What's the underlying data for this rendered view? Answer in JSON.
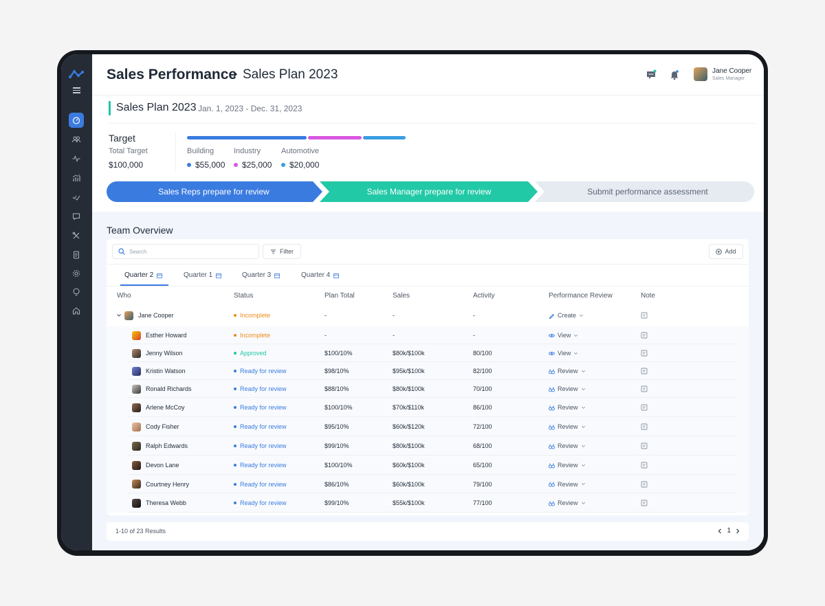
{
  "breadcrumb": {
    "section": "Sales Performance",
    "page": "Sales Plan 2023"
  },
  "user": {
    "name": "Jane Cooper",
    "role": "Sales Manager"
  },
  "plan": {
    "title": "Sales Plan 2023",
    "dates": "Jan. 1, 2023 - Dec. 31, 2023"
  },
  "target": {
    "heading": "Target",
    "total_label": "Total Target",
    "total_value": "$100,000",
    "categories": [
      {
        "label": "Building",
        "value": "$55,000",
        "color": "#3a7be0"
      },
      {
        "label": "Industry",
        "value": "$25,000",
        "color": "#d957df"
      },
      {
        "label": "Automotive",
        "value": "$20,000",
        "color": "#3a9de0"
      }
    ]
  },
  "steps": [
    {
      "label": "Sales Reps prepare for review",
      "state": "done",
      "color": "#3a7be0"
    },
    {
      "label": "Sales Manager prepare for review",
      "state": "current",
      "color": "#22c9a6"
    },
    {
      "label": "Submit performance assessment",
      "state": "pending",
      "color": "#e6ebf2"
    }
  ],
  "overview": {
    "title": "Team Overview",
    "search_placeholder": "Search",
    "filter_label": "Filter",
    "add_label": "Add",
    "tabs": [
      "Quarter 2",
      "Quarter 1",
      "Quarter 3",
      "Quarter 4"
    ],
    "active_tab": "Quarter 2",
    "columns": [
      "Who",
      "Status",
      "Plan Total",
      "Sales",
      "Activity",
      "Performance Review",
      "Note"
    ],
    "rows": [
      {
        "who": "Jane Cooper",
        "status": "Incomplete",
        "status_color": "#f08a1c",
        "plan_total": "-",
        "sales": "-",
        "activity": "-",
        "review": "Create",
        "review_icon": "pencil-icon",
        "parent": true
      },
      {
        "who": "Esther Howard",
        "status": "Incomplete",
        "status_color": "#f08a1c",
        "plan_total": "-",
        "sales": "-",
        "activity": "-",
        "review": "View",
        "review_icon": "eye-icon"
      },
      {
        "who": "Jenny Wilson",
        "status": "Approved",
        "status_color": "#22c4a4",
        "plan_total": "$100/10%",
        "sales": "$80k/$100k",
        "activity": "80/100",
        "review": "View",
        "review_icon": "eye-icon"
      },
      {
        "who": "Kristin Watson",
        "status": "Ready for review",
        "status_color": "#3a7be0",
        "plan_total": "$98/10%",
        "sales": "$95k/$100k",
        "activity": "82/100",
        "review": "Review",
        "review_icon": "binoculars-icon"
      },
      {
        "who": "Ronald Richards",
        "status": "Ready for review",
        "status_color": "#3a7be0",
        "plan_total": "$88/10%",
        "sales": "$80k/$100k",
        "activity": "70/100",
        "review": "Review",
        "review_icon": "binoculars-icon"
      },
      {
        "who": "Arlene McCoy",
        "status": "Ready for review",
        "status_color": "#3a7be0",
        "plan_total": "$100/10%",
        "sales": "$70k/$110k",
        "activity": "86/100",
        "review": "Review",
        "review_icon": "binoculars-icon"
      },
      {
        "who": "Cody Fisher",
        "status": "Ready for review",
        "status_color": "#3a7be0",
        "plan_total": "$95/10%",
        "sales": "$60k/$120k",
        "activity": "72/100",
        "review": "Review",
        "review_icon": "binoculars-icon"
      },
      {
        "who": "Ralph Edwards",
        "status": "Ready for review",
        "status_color": "#3a7be0",
        "plan_total": "$99/10%",
        "sales": "$80k/$100k",
        "activity": "68/100",
        "review": "Review",
        "review_icon": "binoculars-icon"
      },
      {
        "who": "Devon Lane",
        "status": "Ready for review",
        "status_color": "#3a7be0",
        "plan_total": "$100/10%",
        "sales": "$60k/$100k",
        "activity": "65/100",
        "review": "Review",
        "review_icon": "binoculars-icon"
      },
      {
        "who": "Courtney Henry",
        "status": "Ready for review",
        "status_color": "#3a7be0",
        "plan_total": "$86/10%",
        "sales": "$60k/$100k",
        "activity": "79/100",
        "review": "Review",
        "review_icon": "binoculars-icon"
      },
      {
        "who": "Theresa Webb",
        "status": "Ready for review",
        "status_color": "#3a7be0",
        "plan_total": "$99/10%",
        "sales": "$55k/$100k",
        "activity": "77/100",
        "review": "Review",
        "review_icon": "binoculars-icon"
      }
    ],
    "results_text": "1-10 of 23 Results",
    "page": "1"
  },
  "sidebar": {
    "icons": [
      "dashboard-icon",
      "users-icon",
      "activity-icon",
      "chart-icon",
      "tasks-icon",
      "messages-icon",
      "tools-icon",
      "document-icon",
      "settings-icon",
      "ideas-icon",
      "home-icon"
    ]
  }
}
